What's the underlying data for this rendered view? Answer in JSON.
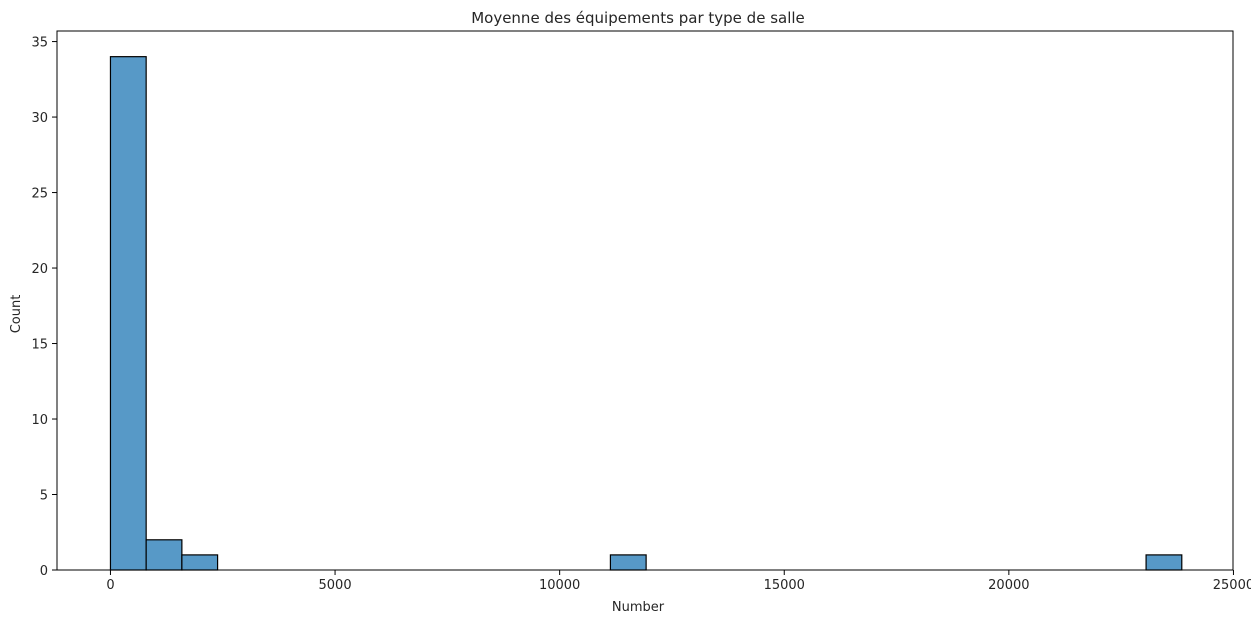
{
  "chart_data": {
    "type": "bar",
    "subtype": "histogram",
    "title": "Moyenne des équipements par type de salle",
    "xlabel": "Number",
    "ylabel": "Count",
    "xlim": [
      -1190,
      24990
    ],
    "ylim": [
      0,
      35.7
    ],
    "xticks": [
      0,
      5000,
      10000,
      15000,
      20000,
      25000
    ],
    "xtick_labels": [
      "0",
      "5000",
      "10000",
      "15000",
      "20000",
      "25000"
    ],
    "yticks": [
      0,
      5,
      10,
      15,
      20,
      25,
      30,
      35
    ],
    "ytick_labels": [
      "0",
      "5",
      "10",
      "15",
      "20",
      "25",
      "30",
      "35"
    ],
    "bin_width": 795,
    "bins": [
      {
        "start": 0,
        "end": 795,
        "count": 34
      },
      {
        "start": 795,
        "end": 1590,
        "count": 2
      },
      {
        "start": 1590,
        "end": 2385,
        "count": 1
      },
      {
        "start": 11130,
        "end": 11925,
        "count": 1
      },
      {
        "start": 23055,
        "end": 23850,
        "count": 1
      }
    ],
    "bar_color": "#5799c7",
    "edge_color": "#000000",
    "grid": false,
    "legend": "none"
  }
}
